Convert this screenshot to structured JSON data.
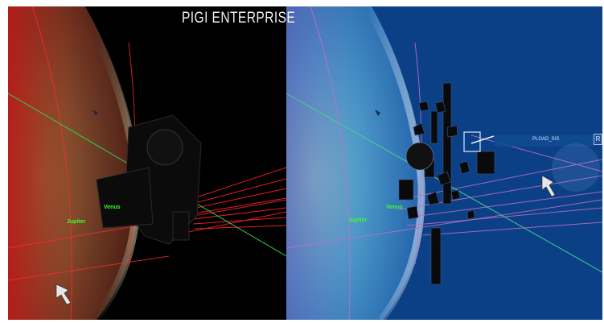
{
  "brand": {
    "title": "PIGI ENTERPRISE"
  },
  "left_view": {
    "labels": {
      "jupiter": "Jupiter",
      "venus": "Venus"
    },
    "colors": {
      "space": "#000000",
      "planet_tint": "#b03a2a",
      "orbit_lines": "#ff2b2b",
      "axis_line": "#2fd04a"
    }
  },
  "right_view": {
    "labels": {
      "jupiter": "Jupiter",
      "venus": "Venus",
      "payload": "PLOAD_SIS",
      "tag": "R"
    },
    "colors": {
      "space": "#0b3f86",
      "planet_tint": "#4d9dd8",
      "orbit_lines": "#c070c8",
      "axis_line": "#44d18a"
    }
  }
}
